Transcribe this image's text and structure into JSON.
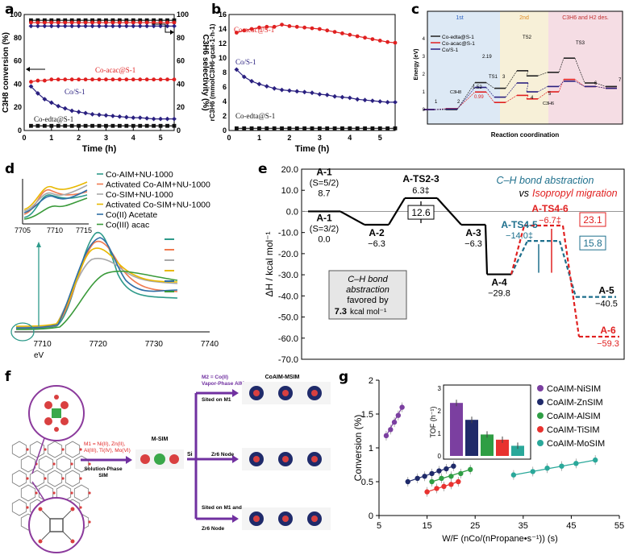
{
  "panel_letters": [
    "a",
    "b",
    "c",
    "d",
    "e",
    "f",
    "g"
  ],
  "chart_data": [
    {
      "id": "a",
      "type": "line",
      "xlabel": "Time (h)",
      "ylabel_left": "C3H8 conversion (%)",
      "ylabel_right": "C3H6 selectivity (%)",
      "xlim": [
        0,
        5.5
      ],
      "ylim_left": [
        0,
        100
      ],
      "ylim_right": [
        0,
        100
      ],
      "xticks": [
        "0",
        "1",
        "2",
        "3",
        "4",
        "5"
      ],
      "yticks_left": [
        "0",
        "20",
        "40",
        "60",
        "80",
        "100"
      ],
      "yticks_right": [
        "0",
        "20",
        "40",
        "60",
        "80",
        "100"
      ],
      "series": [
        {
          "name": "Co-acac@S-1",
          "axis": "conversion",
          "color": "#e02020",
          "marker": "circle",
          "x": [
            0.25,
            0.5,
            0.75,
            1,
            1.25,
            1.5,
            1.75,
            2,
            2.25,
            2.5,
            2.75,
            3,
            3.25,
            3.5,
            3.75,
            4,
            4.25,
            4.5,
            4.75,
            5,
            5.25,
            5.5
          ],
          "y": [
            42,
            43,
            43,
            44,
            44,
            44,
            44,
            44,
            44,
            44,
            44,
            44,
            44,
            44,
            44,
            44,
            44,
            44,
            44,
            44,
            44,
            44
          ]
        },
        {
          "name": "Co/S-1",
          "axis": "conversion",
          "color": "#2a2080",
          "marker": "diamond",
          "x": [
            0.25,
            0.5,
            0.75,
            1,
            1.25,
            1.5,
            1.75,
            2,
            2.25,
            2.5,
            2.75,
            3,
            3.25,
            3.5,
            3.75,
            4,
            4.25,
            4.5,
            4.75,
            5,
            5.25,
            5.5
          ],
          "y": [
            38,
            32,
            27,
            24,
            21,
            19,
            17,
            16,
            15,
            14,
            13.5,
            13,
            12.5,
            12,
            11.5,
            11,
            11,
            10.5,
            10,
            10,
            10,
            10
          ]
        },
        {
          "name": "Co-edta@S-1",
          "axis": "conversion",
          "color": "#111111",
          "marker": "square",
          "x": [
            0.25,
            0.5,
            0.75,
            1,
            1.25,
            1.5,
            1.75,
            2,
            2.25,
            2.5,
            2.75,
            3,
            3.25,
            3.5,
            3.75,
            4,
            4.25,
            4.5,
            4.75,
            5,
            5.25,
            5.5
          ],
          "y": [
            4,
            4,
            4,
            4,
            4,
            4,
            4,
            4,
            4,
            4,
            4,
            4,
            4,
            4,
            4,
            4,
            4,
            4,
            4,
            4,
            4,
            4
          ]
        },
        {
          "name": "Co-edta@S-1 sel",
          "axis": "selectivity",
          "color": "#111111",
          "marker": "square",
          "x": [
            0.25,
            0.5,
            0.75,
            1,
            1.25,
            1.5,
            1.75,
            2,
            2.25,
            2.5,
            2.75,
            3,
            3.25,
            3.5,
            3.75,
            4,
            4.25,
            4.5,
            4.75,
            5,
            5.25,
            5.5
          ],
          "y": [
            95,
            95,
            95,
            95,
            95,
            95,
            95,
            95,
            95,
            95,
            95,
            95,
            95,
            95,
            95,
            95,
            95,
            95,
            95,
            95,
            95,
            95
          ]
        },
        {
          "name": "Co-acac@S-1 sel",
          "axis": "selectivity",
          "color": "#e02020",
          "marker": "circle",
          "x": [
            0.25,
            0.5,
            0.75,
            1,
            1.25,
            1.5,
            1.75,
            2,
            2.25,
            2.5,
            2.75,
            3,
            3.25,
            3.5,
            3.75,
            4,
            4.25,
            4.5,
            4.75,
            5,
            5.25,
            5.5
          ],
          "y": [
            93,
            93,
            93,
            93,
            93,
            93,
            93,
            93,
            93,
            93,
            93,
            93,
            93,
            93,
            93,
            93,
            93,
            93,
            93,
            93,
            93,
            93
          ]
        },
        {
          "name": "Co/S-1 sel",
          "axis": "selectivity",
          "color": "#2a2080",
          "marker": "diamond",
          "x": [
            0.25,
            0.5,
            0.75,
            1,
            1.25,
            1.5,
            1.75,
            2,
            2.25,
            2.5,
            2.75,
            3,
            3.25,
            3.5,
            3.75,
            4,
            4.25,
            4.5,
            4.75,
            5,
            5.25,
            5.5
          ],
          "y": [
            90,
            90,
            90,
            90,
            90,
            90,
            90,
            90,
            90,
            90,
            90,
            90,
            90,
            90,
            90,
            90,
            90,
            90,
            90,
            90,
            90,
            90
          ]
        }
      ],
      "labels": [
        "Co-acac@S-1",
        "Co/S-1",
        "Co-edta@S-1"
      ]
    },
    {
      "id": "b",
      "type": "line",
      "xlabel": "Time (h)",
      "ylabel": "rC3H6 (mmolC3H6·gcat-1·h-1)",
      "xlim": [
        0,
        5.5
      ],
      "ylim": [
        0,
        16
      ],
      "xticks": [
        "0",
        "1",
        "2",
        "3",
        "4",
        "5"
      ],
      "yticks": [
        "0",
        "2",
        "4",
        "6",
        "8",
        "10",
        "12",
        "14",
        "16"
      ],
      "series": [
        {
          "name": "Co-acac@S-1",
          "color": "#e02020",
          "marker": "circle",
          "x": [
            0.25,
            0.5,
            0.75,
            1,
            1.25,
            1.5,
            1.75,
            2,
            2.25,
            2.5,
            2.75,
            3,
            3.25,
            3.5,
            3.75,
            4,
            4.25,
            4.5,
            4.75,
            5,
            5.25,
            5.5
          ],
          "y": [
            13.5,
            13.8,
            14,
            14.2,
            14.3,
            14.3,
            14.6,
            14.4,
            14.3,
            14.2,
            14.1,
            14,
            13.8,
            13.6,
            13.4,
            13.2,
            13,
            12.8,
            12.6,
            12.4,
            12.2,
            12.1
          ]
        },
        {
          "name": "Co/S-1",
          "color": "#2a2080",
          "marker": "diamond",
          "x": [
            0.25,
            0.5,
            0.75,
            1,
            1.25,
            1.5,
            1.75,
            2,
            2.25,
            2.5,
            2.75,
            3,
            3.25,
            3.5,
            3.75,
            4,
            4.25,
            4.5,
            4.75,
            5,
            5.25,
            5.5
          ],
          "y": [
            8.4,
            7.4,
            6.8,
            6.4,
            6.1,
            5.8,
            5.6,
            5.5,
            5.4,
            5.3,
            5.2,
            5,
            4.9,
            4.7,
            4.6,
            4.5,
            4.3,
            4.2,
            4.1,
            4,
            3.9,
            3.9
          ]
        },
        {
          "name": "Co-edta@S-1",
          "color": "#111111",
          "marker": "square",
          "x": [
            0.25,
            0.5,
            0.75,
            1,
            1.25,
            1.5,
            1.75,
            2,
            2.25,
            2.5,
            2.75,
            3,
            3.25,
            3.5,
            3.75,
            4,
            4.25,
            4.5,
            4.75,
            5,
            5.25,
            5.5
          ],
          "y": [
            0.3,
            0.3,
            0.3,
            0.3,
            0.3,
            0.3,
            0.3,
            0.3,
            0.3,
            0.3,
            0.3,
            0.3,
            0.3,
            0.3,
            0.3,
            0.3,
            0.3,
            0.3,
            0.3,
            0.3,
            0.3,
            0.3
          ]
        }
      ],
      "labels": [
        "Co-acac@S-1",
        "Co/S-1",
        "Co-edta@S-1"
      ]
    },
    {
      "id": "c",
      "type": "line",
      "ylabel": "Energy (eV)",
      "xlabel": "Reaction coordination",
      "regions": [
        "1st",
        "2nd",
        "C3H6 and H2 des."
      ],
      "legend": [
        "Co-edta@S-1",
        "Co-acac@S-1",
        "Co/S-1"
      ],
      "annotations": [
        "TS1",
        "TS2",
        "TS3",
        "1",
        "2",
        "3",
        "4",
        "5",
        "6",
        "7",
        "C3H8",
        "C3H6",
        "1.52",
        "0.99",
        "2.19"
      ],
      "yticks": [
        "0",
        "1",
        "2",
        "3",
        "4"
      ],
      "series": [
        {
          "name": "Co-edta@S-1",
          "color": "#222222",
          "y": [
            0,
            0.0,
            1.52,
            1.2,
            2.19,
            1.9,
            2.1,
            2.9,
            1.5,
            1.3
          ]
        },
        {
          "name": "Co-acac@S-1",
          "color": "#e02020",
          "y": [
            0,
            0.05,
            0.99,
            0.4,
            0.8,
            0.6,
            1.0,
            1.7,
            1.3,
            1.2
          ]
        },
        {
          "name": "Co/S-1",
          "color": "#2a2080",
          "y": [
            0,
            0.03,
            1.25,
            0.7,
            1.5,
            1.0,
            1.3,
            1.6,
            1.3,
            1.2
          ]
        }
      ]
    },
    {
      "id": "d",
      "type": "line",
      "xlabel": "eV",
      "xlim": [
        7705,
        7740
      ],
      "xticks": [
        "7710",
        "7720",
        "7730",
        "7740"
      ],
      "inset_xticks": [
        "7705",
        "7710",
        "7715"
      ],
      "legend": [
        "Co-AIM+NU-1000",
        "Activated Co-AIM+NU-1000",
        "Co-SIM+NU-1000",
        "Activated Co-SIM+NU-1000",
        "Co(II) Acetate",
        "Co(III) acac"
      ],
      "colors": [
        "#2e9a8a",
        "#f07a50",
        "#a8a8a8",
        "#e8b800",
        "#2f6ea5",
        "#3a9a3a"
      ]
    },
    {
      "id": "e",
      "type": "line",
      "ylabel": "ΔH / kcal mol⁻¹",
      "ylim": [
        -70,
        20
      ],
      "yticks": [
        "20.0",
        "10.0",
        "0.0",
        "-10.0",
        "-20.0",
        "-30.0",
        "-40.0",
        "-50.0",
        "-60.0",
        "-70.0"
      ],
      "legend_title_1": "C–H bond abstraction",
      "legend_title_vs": "vs",
      "legend_title_2": "Isopropyl migration",
      "states": [
        {
          "name": "A-1",
          "sub": "(S=5/2)",
          "value": "8.7"
        },
        {
          "name": "A-1",
          "sub": "(S=3/2)",
          "value": "0.0"
        },
        {
          "name": "A-2",
          "value": "−6.3"
        },
        {
          "name": "A-TS2-3",
          "value": "6.3‡"
        },
        {
          "name": "A-3",
          "value": "−6.3"
        },
        {
          "name": "A-4",
          "value": "−29.8"
        },
        {
          "name": "A-TS4-5",
          "value": "−14.0‡"
        },
        {
          "name": "A-TS4-6",
          "value": "−6.7‡"
        },
        {
          "name": "A-5",
          "value": "−40.5"
        },
        {
          "name": "A-6",
          "value": "−59.3"
        }
      ],
      "barriers": [
        "12.6",
        "23.1",
        "15.8"
      ],
      "note": {
        "line1": "C–H bond",
        "line2": "abstraction",
        "line3": "favored by",
        "value": "7.3",
        "unit": "kcal mol⁻¹"
      },
      "energies": {
        "A1": 0,
        "A2": -6.3,
        "TS23": 6.3,
        "A3": -6.3,
        "A4": -29.8,
        "TS45": -14.0,
        "TS46": -6.7,
        "A5": -40.5,
        "A6": -59.3
      }
    },
    {
      "id": "g",
      "type": "scatter",
      "xlabel": "W/F (nCo/(nPropane•s⁻¹)) (s)",
      "ylabel": "Conversion (%)",
      "xlim": [
        5,
        55
      ],
      "ylim": [
        0,
        2
      ],
      "xticks": [
        "5",
        "15",
        "25",
        "35",
        "45",
        "55"
      ],
      "yticks": [
        "0",
        "0.5",
        "1",
        "1.5",
        "2"
      ],
      "series": [
        {
          "name": "CoAIM-NiSIM",
          "color": "#7b3fa0",
          "x": [
            6.5,
            7.4,
            8.2,
            9,
            9.8
          ],
          "y": [
            1.18,
            1.27,
            1.38,
            1.48,
            1.6
          ]
        },
        {
          "name": "CoAIM-ZnSIM",
          "color": "#1f2a6a",
          "x": [
            11,
            13,
            14.5,
            16,
            17.5,
            19,
            20.5
          ],
          "y": [
            0.5,
            0.55,
            0.58,
            0.62,
            0.66,
            0.69,
            0.73
          ]
        },
        {
          "name": "CoAIM-AlSIM",
          "color": "#2f9e44",
          "x": [
            16,
            18,
            20,
            22,
            24
          ],
          "y": [
            0.5,
            0.55,
            0.58,
            0.62,
            0.68
          ]
        },
        {
          "name": "CoAIM-TiSIM",
          "color": "#e8322f",
          "x": [
            15,
            17,
            18.5,
            20,
            21.5
          ],
          "y": [
            0.35,
            0.4,
            0.43,
            0.46,
            0.5
          ]
        },
        {
          "name": "CoAIM-MoSIM",
          "color": "#2aa89a",
          "x": [
            33,
            37,
            40,
            43,
            46,
            50
          ],
          "y": [
            0.6,
            0.65,
            0.7,
            0.73,
            0.77,
            0.82
          ]
        }
      ],
      "inset": {
        "ylabel": "TOF (h⁻¹)",
        "yticks": [
          "0",
          "1",
          "2",
          "3"
        ],
        "values": [
          2.35,
          1.6,
          0.95,
          0.72,
          0.45
        ]
      }
    }
  ],
  "panel_f": {
    "m2_label": "M2 = Co(II)",
    "m2_sub": "Vapor-Phase AIM",
    "product": "CoAIM-MSIM",
    "sited_m1": "Sited on M1",
    "si": "Si",
    "zr_node": "Zr6 Node",
    "sited_both_1": "Sited on M1 and",
    "sited_both_2": "Zr6 Node",
    "msim": "M-SIM",
    "m1_line1": "M1 = Ni(II), Zn(II),",
    "m1_line2": "Al(III), Ti(IV), Mo(VI)",
    "sol1": "Solution-Phase",
    "sol2": "SIM"
  }
}
